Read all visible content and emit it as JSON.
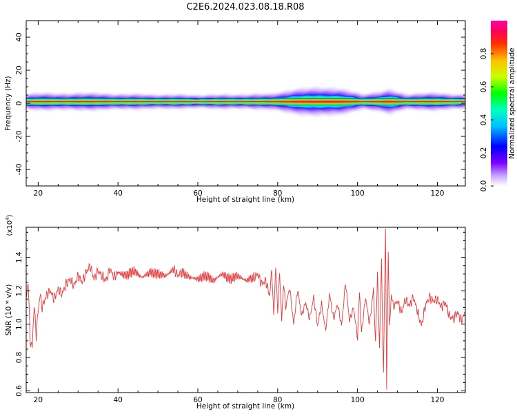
{
  "page_title": "C2E6.2024.023.08.18.R08",
  "colors": {
    "snr_line": "#e8383a",
    "axis": "#000000",
    "spectrum_ridge": "#ff1a3a",
    "spectrum_halo": "#c9a8ff"
  },
  "chart_data": [
    {
      "type": "heatmap",
      "title": "",
      "xlabel": "Height of straight line (km)",
      "ylabel": "Frequency (Hz)",
      "xlim": [
        17,
        127
      ],
      "ylim": [
        -50,
        50
      ],
      "x_ticks": [
        20,
        40,
        60,
        80,
        100,
        120
      ],
      "y_ticks": [
        -40,
        -20,
        0,
        20,
        40
      ],
      "x_tick_labels": [
        "20",
        "40",
        "60",
        "80",
        "100",
        "120"
      ],
      "y_tick_labels": [
        "-40",
        "-20",
        "0",
        "20",
        "40"
      ],
      "colorbar": {
        "label": "Normalized spectral amplitude",
        "range": [
          0,
          1
        ],
        "ticks": [
          0.0,
          0.2,
          0.4,
          0.6,
          0.8
        ],
        "tick_labels": [
          "0.0",
          "0.2",
          "0.4",
          "0.6",
          "0.8"
        ],
        "colormap": "rainbow"
      },
      "band": {
        "center_freq_hz": 1,
        "upper_line_hz": 3,
        "lower_line_hz": -1,
        "half_width_profile": [
          [
            17,
            3
          ],
          [
            20,
            3.5
          ],
          [
            25,
            3
          ],
          [
            30,
            3.5
          ],
          [
            40,
            3
          ],
          [
            60,
            2.5
          ],
          [
            78,
            3
          ],
          [
            84,
            5
          ],
          [
            90,
            6
          ],
          [
            95,
            5.5
          ],
          [
            99,
            4
          ],
          [
            101,
            3
          ],
          [
            106,
            4
          ],
          [
            108,
            5
          ],
          [
            112,
            3
          ],
          [
            120,
            3.5
          ],
          [
            127,
            2.5
          ]
        ]
      }
    },
    {
      "type": "line",
      "title": "",
      "xlabel": "Height of straight line (km)",
      "ylabel": "SNR (10 * v/v)",
      "y_multiplier": "(x10",
      "y_multiplier_exp": "4",
      "y_multiplier_close": ")",
      "xlim": [
        17,
        127
      ],
      "ylim": [
        0.59,
        1.58
      ],
      "x_ticks": [
        20,
        40,
        60,
        80,
        100,
        120
      ],
      "y_ticks": [
        0.6,
        0.8,
        1.0,
        1.2,
        1.4
      ],
      "x_tick_labels": [
        "20",
        "40",
        "60",
        "80",
        "100",
        "120"
      ],
      "y_tick_labels": [
        "0.6",
        "0.8",
        "1.0",
        "1.2",
        "1.4"
      ],
      "series": [
        {
          "points": [
            [
              17.0,
              1.15
            ],
            [
              17.5,
              1.26
            ],
            [
              18.0,
              0.9
            ],
            [
              18.5,
              0.86
            ],
            [
              19.0,
              1.12
            ],
            [
              19.5,
              0.93
            ],
            [
              20.0,
              1.08
            ],
            [
              20.5,
              1.18
            ],
            [
              21.0,
              1.1
            ],
            [
              22.0,
              1.17
            ],
            [
              23.0,
              1.2
            ],
            [
              24.0,
              1.15
            ],
            [
              25.0,
              1.21
            ],
            [
              26.0,
              1.18
            ],
            [
              27.0,
              1.24
            ],
            [
              28.0,
              1.27
            ],
            [
              29.0,
              1.23
            ],
            [
              30.0,
              1.29
            ],
            [
              31.0,
              1.25
            ],
            [
              32.0,
              1.31
            ],
            [
              33.0,
              1.35
            ],
            [
              34.0,
              1.27
            ],
            [
              35.0,
              1.32
            ],
            [
              36.0,
              1.29
            ],
            [
              37.0,
              1.26
            ],
            [
              38.0,
              1.33
            ],
            [
              39.0,
              1.28
            ],
            [
              40.0,
              1.31
            ],
            [
              42.0,
              1.29
            ],
            [
              44.0,
              1.32
            ],
            [
              46.0,
              1.28
            ],
            [
              48.0,
              1.31
            ],
            [
              50.0,
              1.3
            ],
            [
              52.0,
              1.29
            ],
            [
              54.0,
              1.33
            ],
            [
              55.0,
              1.29
            ],
            [
              56.0,
              1.31
            ],
            [
              58.0,
              1.28
            ],
            [
              60.0,
              1.27
            ],
            [
              62.0,
              1.29
            ],
            [
              64.0,
              1.26
            ],
            [
              66.0,
              1.3
            ],
            [
              68.0,
              1.27
            ],
            [
              70.0,
              1.29
            ],
            [
              72.0,
              1.26
            ],
            [
              74.0,
              1.28
            ],
            [
              75.0,
              1.3
            ],
            [
              76.0,
              1.24
            ],
            [
              77.0,
              1.26
            ],
            [
              78.0,
              1.17
            ],
            [
              78.5,
              1.33
            ],
            [
              79.0,
              1.05
            ],
            [
              79.5,
              1.34
            ],
            [
              80.0,
              1.08
            ],
            [
              80.5,
              1.31
            ],
            [
              81.0,
              1.02
            ],
            [
              81.5,
              1.25
            ],
            [
              82.0,
              1.1
            ],
            [
              83.0,
              1.22
            ],
            [
              84.0,
              1.0
            ],
            [
              85.0,
              1.21
            ],
            [
              86.0,
              1.05
            ],
            [
              87.0,
              1.13
            ],
            [
              88.0,
              1.03
            ],
            [
              89.0,
              1.16
            ],
            [
              90.0,
              0.99
            ],
            [
              91.0,
              1.12
            ],
            [
              92.0,
              0.96
            ],
            [
              93.0,
              1.18
            ],
            [
              94.0,
              1.03
            ],
            [
              95.0,
              1.12
            ],
            [
              96.0,
              0.99
            ],
            [
              97.0,
              1.25
            ],
            [
              98.0,
              1.02
            ],
            [
              99.0,
              1.1
            ],
            [
              100.0,
              0.92
            ],
            [
              100.5,
              1.2
            ],
            [
              101.0,
              0.95
            ],
            [
              102.0,
              1.16
            ],
            [
              103.0,
              1.0
            ],
            [
              104.0,
              1.21
            ],
            [
              104.5,
              0.88
            ],
            [
              105.0,
              1.31
            ],
            [
              105.5,
              0.85
            ],
            [
              106.0,
              1.37
            ],
            [
              106.5,
              0.7
            ],
            [
              107.0,
              1.57
            ],
            [
              107.3,
              0.6
            ],
            [
              107.7,
              1.42
            ],
            [
              108.0,
              0.98
            ],
            [
              108.5,
              1.18
            ],
            [
              109.0,
              1.1
            ],
            [
              110.0,
              1.14
            ],
            [
              111.0,
              1.07
            ],
            [
              112.0,
              1.15
            ],
            [
              113.0,
              1.11
            ],
            [
              114.0,
              1.16
            ],
            [
              115.0,
              1.08
            ],
            [
              116.0,
              0.99
            ],
            [
              117.0,
              1.11
            ],
            [
              118.0,
              1.16
            ],
            [
              119.0,
              1.14
            ],
            [
              120.0,
              1.15
            ],
            [
              121.0,
              1.1
            ],
            [
              122.0,
              1.13
            ],
            [
              123.0,
              1.05
            ],
            [
              124.0,
              1.03
            ],
            [
              125.0,
              1.07
            ],
            [
              126.0,
              1.02
            ],
            [
              127.0,
              1.07
            ]
          ]
        }
      ]
    }
  ]
}
